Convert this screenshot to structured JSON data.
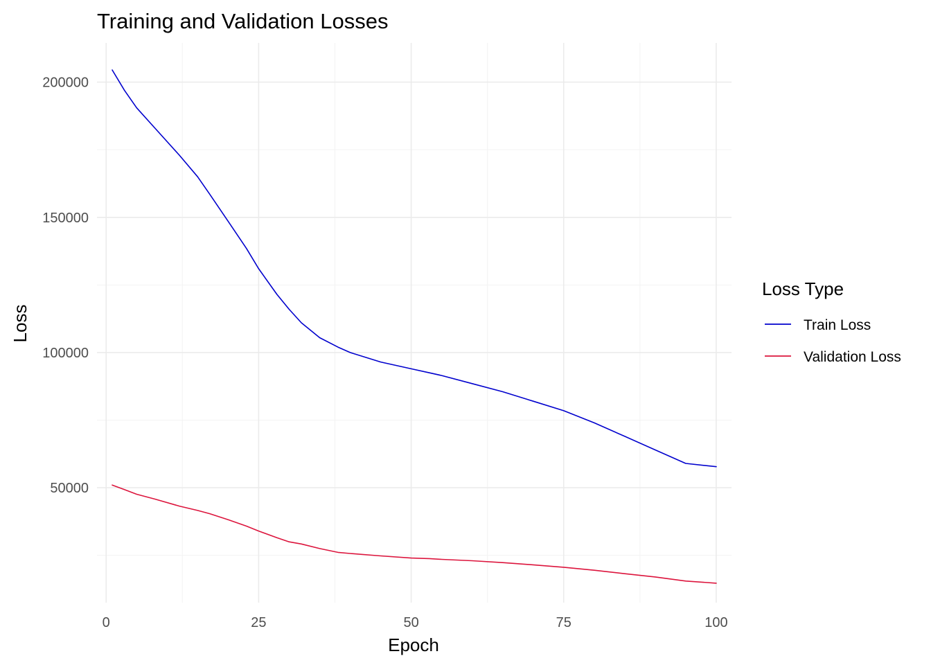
{
  "chart_data": {
    "type": "line",
    "title": "Training and Validation Losses",
    "xlabel": "Epoch",
    "ylabel": "Loss",
    "xlim": [
      -1.5,
      102.5
    ],
    "ylim": [
      7500,
      214500
    ],
    "x_ticks": [
      0,
      25,
      50,
      75,
      100
    ],
    "y_ticks": [
      50000,
      100000,
      150000,
      200000
    ],
    "grid": true,
    "legend": {
      "title": "Loss Type",
      "position": "right"
    },
    "x_knots": [
      1,
      3,
      5,
      8,
      12,
      15,
      17,
      20,
      23,
      25,
      28,
      30,
      32,
      35,
      38,
      40,
      45,
      50,
      53,
      55,
      60,
      65,
      70,
      75,
      80,
      85,
      90,
      95,
      100
    ],
    "series": [
      {
        "name": "Train Loss",
        "color": "#0000cd",
        "values": [
          204500,
          197000,
          190500,
          183000,
          173000,
          165000,
          158500,
          148500,
          138500,
          131000,
          121500,
          116000,
          111000,
          105500,
          102000,
          100000,
          96500,
          94000,
          92500,
          91500,
          88500,
          85500,
          82000,
          78500,
          74000,
          69000,
          64000,
          59000,
          57800
        ]
      },
      {
        "name": "Validation Loss",
        "color": "#dc143c",
        "values": [
          51000,
          49300,
          47600,
          45800,
          43200,
          41600,
          40400,
          38200,
          35800,
          34000,
          31500,
          30000,
          29200,
          27500,
          26100,
          25700,
          24800,
          24000,
          23800,
          23500,
          23000,
          22300,
          21500,
          20600,
          19500,
          18200,
          17000,
          15500,
          14700
        ]
      }
    ]
  }
}
